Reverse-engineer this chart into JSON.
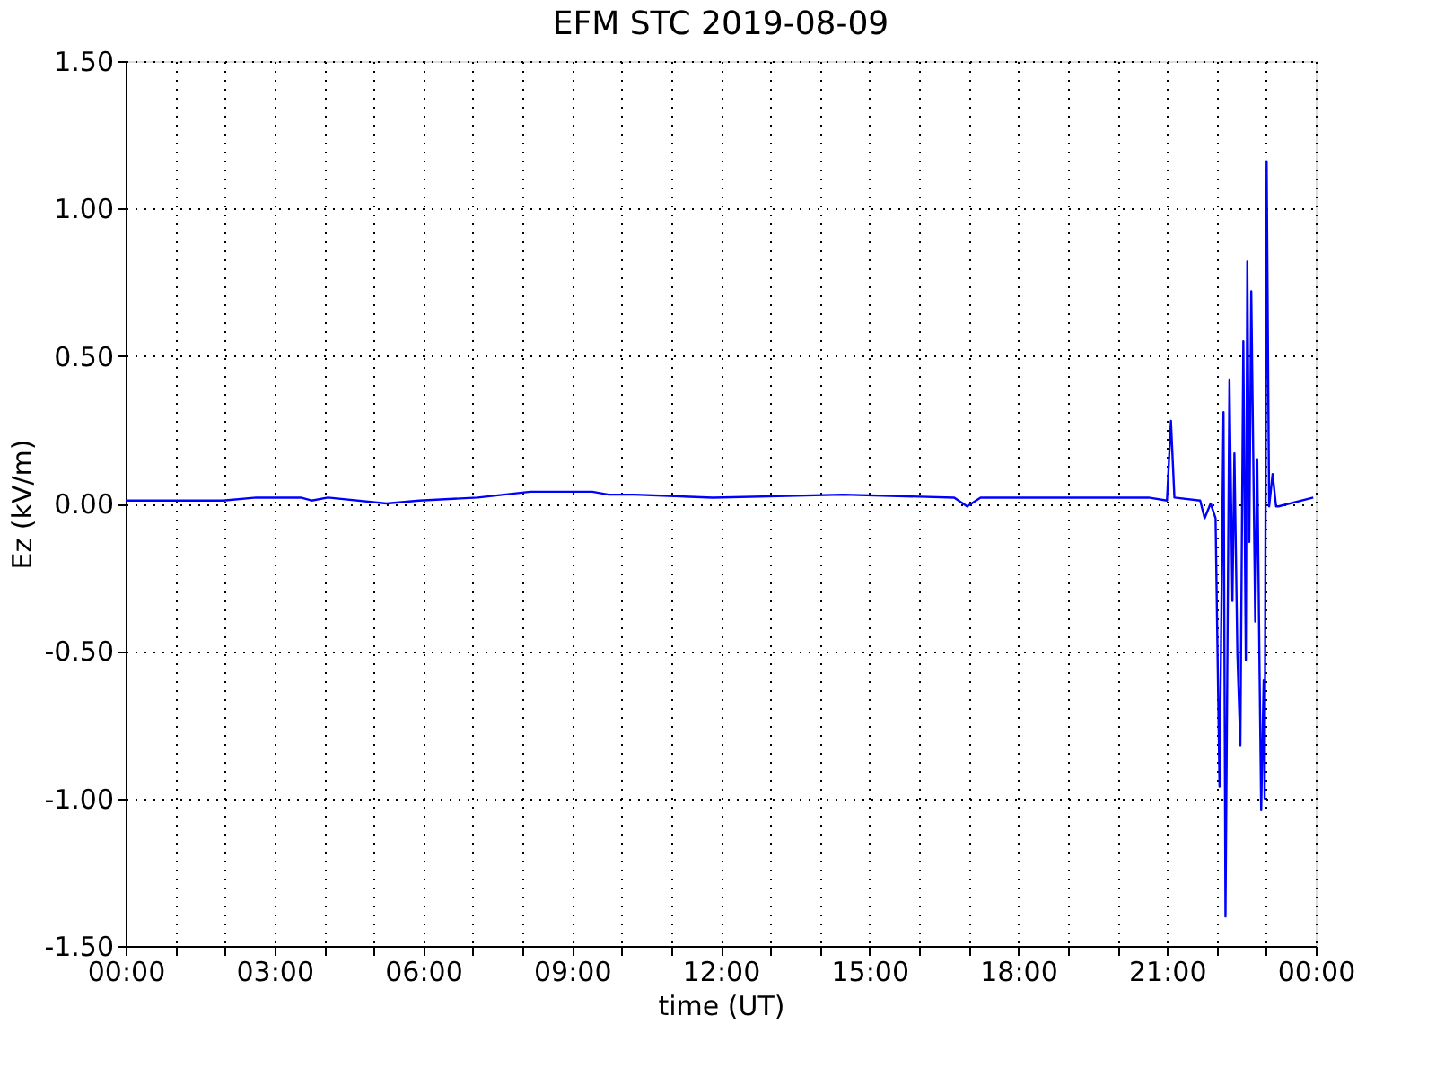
{
  "chart_data": {
    "type": "line",
    "title": "EFM STC    2019-08-09",
    "xlabel": "time (UT)",
    "ylabel": "Ez (kV/m)",
    "x": [
      0,
      1.97,
      2.63,
      3.53,
      3.75,
      4.08,
      5.26,
      5.92,
      7.1,
      8.16,
      9.41,
      9.74,
      10.26,
      11.84,
      14.47,
      16.71,
      16.97,
      17.24,
      18.42,
      20.63,
      21.0,
      21.08,
      21.15,
      21.67,
      21.76,
      21.88,
      21.98,
      22.06,
      22.14,
      22.18,
      22.26,
      22.32,
      22.36,
      22.42,
      22.48,
      22.54,
      22.59,
      22.62,
      22.66,
      22.7,
      22.74,
      22.78,
      22.82,
      22.87,
      22.9,
      22.95,
      22.97,
      23.01,
      23.06,
      23.13,
      23.2,
      23.25,
      23.95
    ],
    "series": [
      {
        "color": "#0000ff",
        "values": [
          0.01,
          0.01,
          0.02,
          0.02,
          0.01,
          0.02,
          0.0,
          0.01,
          0.02,
          0.04,
          0.04,
          0.03,
          0.03,
          0.02,
          0.03,
          0.02,
          -0.01,
          0.02,
          0.02,
          0.02,
          0.01,
          0.28,
          0.02,
          0.01,
          -0.05,
          0.0,
          -0.05,
          -0.96,
          0.31,
          -1.4,
          0.42,
          -0.33,
          0.17,
          -0.51,
          -0.82,
          0.55,
          -0.53,
          0.82,
          -0.13,
          0.72,
          0.16,
          -0.4,
          0.15,
          -0.61,
          -1.04,
          -0.6,
          -1.0,
          1.16,
          -0.01,
          0.1,
          -0.01,
          -0.01,
          0.02
        ]
      }
    ],
    "xlim": [
      0,
      24
    ],
    "xticks": [
      {
        "value": 0,
        "label": "00:00"
      },
      {
        "value": 1,
        "label": null
      },
      {
        "value": 2,
        "label": null
      },
      {
        "value": 3,
        "label": "03:00"
      },
      {
        "value": 4,
        "label": null
      },
      {
        "value": 5,
        "label": null
      },
      {
        "value": 6,
        "label": "06:00"
      },
      {
        "value": 7,
        "label": null
      },
      {
        "value": 8,
        "label": null
      },
      {
        "value": 9,
        "label": "09:00"
      },
      {
        "value": 10,
        "label": null
      },
      {
        "value": 11,
        "label": null
      },
      {
        "value": 12,
        "label": "12:00"
      },
      {
        "value": 13,
        "label": null
      },
      {
        "value": 14,
        "label": null
      },
      {
        "value": 15,
        "label": "15:00"
      },
      {
        "value": 16,
        "label": null
      },
      {
        "value": 17,
        "label": null
      },
      {
        "value": 18,
        "label": "18:00"
      },
      {
        "value": 19,
        "label": null
      },
      {
        "value": 20,
        "label": null
      },
      {
        "value": 21,
        "label": "21:00"
      },
      {
        "value": 22,
        "label": null
      },
      {
        "value": 23,
        "label": null
      },
      {
        "value": 24,
        "label": "00:00"
      }
    ],
    "ylim": [
      -1.5,
      1.5
    ],
    "yticks": [
      {
        "value": -1.5,
        "label": "-1.50"
      },
      {
        "value": -1.0,
        "label": "-1.00"
      },
      {
        "value": -0.5,
        "label": "-0.50"
      },
      {
        "value": 0,
        "label": "0.00"
      },
      {
        "value": 0.5,
        "label": "0.50"
      },
      {
        "value": 1.0,
        "label": "1.00"
      },
      {
        "value": 1.5,
        "label": "1.50"
      }
    ],
    "grid": true,
    "marker": "none",
    "line_style": "solid"
  }
}
